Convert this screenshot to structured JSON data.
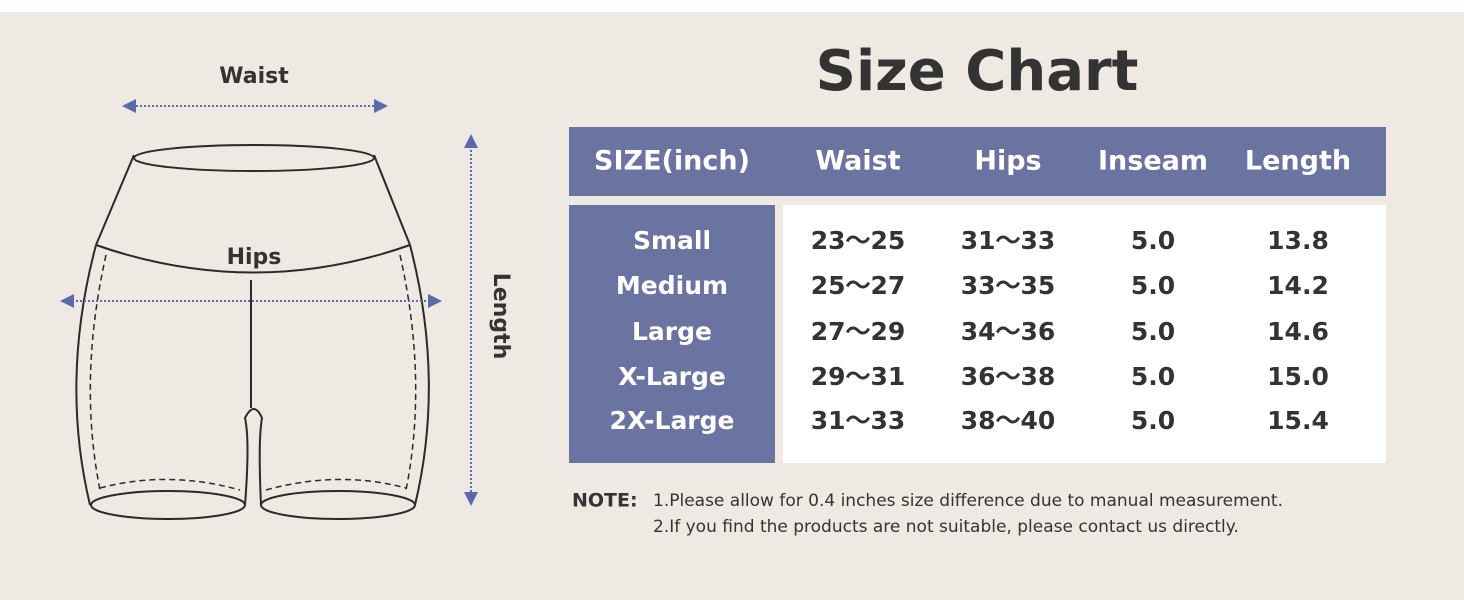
{
  "diagram": {
    "labels": {
      "waist": "Waist",
      "hips": "Hips",
      "length": "Length"
    }
  },
  "title": "Size Chart",
  "table": {
    "header": [
      "SIZE(inch)",
      "Waist",
      "Hips",
      "Inseam",
      "Length"
    ],
    "rows": [
      [
        "Small",
        "23～25",
        "31～33",
        "5.0",
        "13.8"
      ],
      [
        "Medium",
        "25～27",
        "33～35",
        "5.0",
        "14.2"
      ],
      [
        "Large",
        "27～29",
        "34～36",
        "5.0",
        "14.6"
      ],
      [
        "X-Large",
        "29～31",
        "36～38",
        "5.0",
        "15.0"
      ],
      [
        "2X-Large",
        "31～33",
        "38～40",
        "5.0",
        "15.4"
      ]
    ]
  },
  "note": {
    "label": "NOTE:",
    "items": [
      "1.Please allow for 0.4 inches size difference due to manual measurement.",
      "2.If you find the products are not suitable, please contact us directly."
    ]
  }
}
